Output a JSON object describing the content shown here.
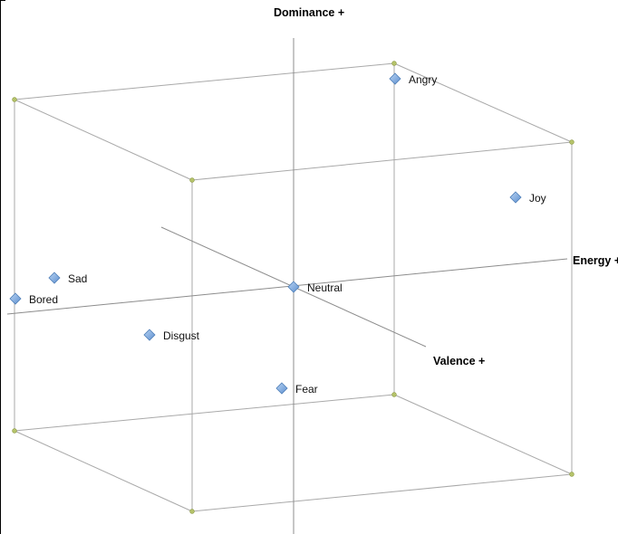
{
  "diagram": {
    "axes": {
      "dominance": "Dominance +",
      "energy": "Energy +",
      "valence": "Valence +"
    },
    "emotions": [
      {
        "id": "angry",
        "label": "Angry"
      },
      {
        "id": "joy",
        "label": "Joy"
      },
      {
        "id": "sad",
        "label": "Sad"
      },
      {
        "id": "bored",
        "label": "Bored"
      },
      {
        "id": "neutral",
        "label": "Neutral"
      },
      {
        "id": "disgust",
        "label": "Disgust"
      },
      {
        "id": "fear",
        "label": "Fear"
      }
    ],
    "colors": {
      "marker": "#7aa9e0",
      "edge": "#a9a9a9",
      "vertex": "#b5c36a"
    }
  }
}
